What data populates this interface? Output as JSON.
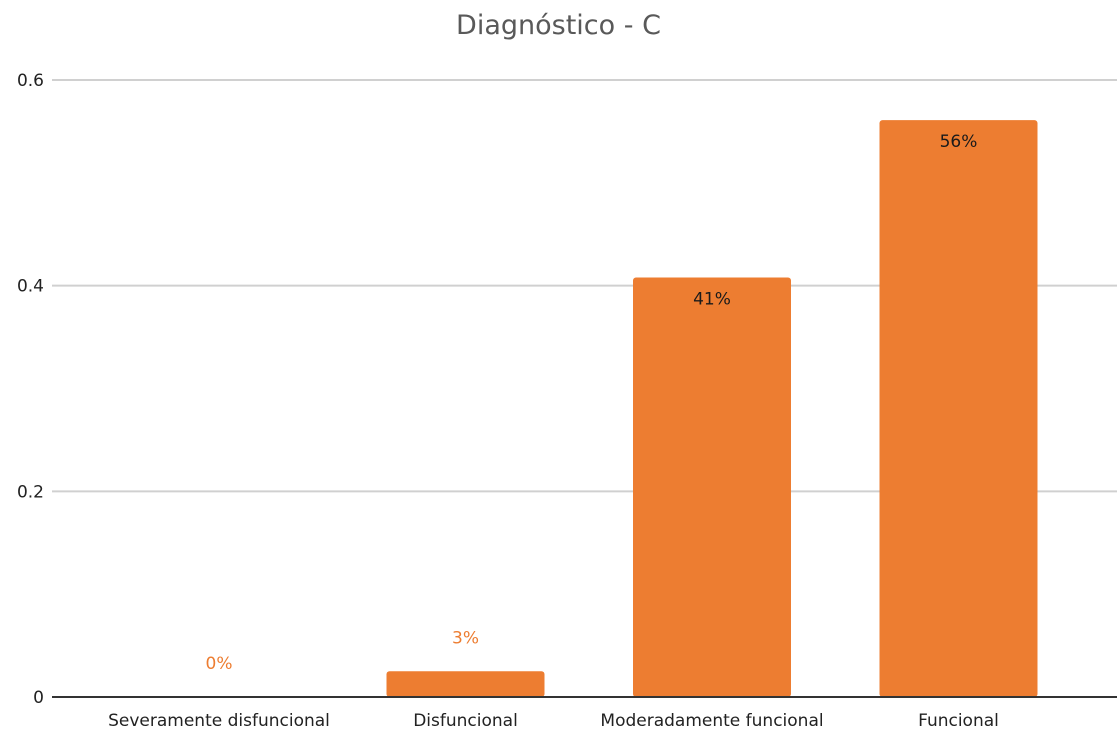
{
  "chart_data": {
    "type": "bar",
    "title": "Diagnóstico - C",
    "xlabel": "",
    "ylabel": "",
    "categories": [
      "Severamente disfuncional",
      "Disfuncional",
      "Moderadamente funcional",
      "Funcional"
    ],
    "values": [
      0,
      0.025,
      0.408,
      0.561
    ],
    "data_labels": [
      "0%",
      "3%",
      "41%",
      "56%"
    ],
    "ylim": [
      0,
      0.6
    ],
    "yticks": [
      0,
      0.2,
      0.4,
      0.6
    ],
    "ytick_labels": [
      "0",
      "0.2",
      "0.4",
      "0.6"
    ],
    "grid": true,
    "legend": "none",
    "colors": {
      "bar": "#ED7D31",
      "label_inside": "#1a1a1a",
      "label_outside": "#ED7D31",
      "grid": "#d0d0d0",
      "axis": "#333333",
      "tick_text": "#222222",
      "title": "#595959"
    }
  }
}
